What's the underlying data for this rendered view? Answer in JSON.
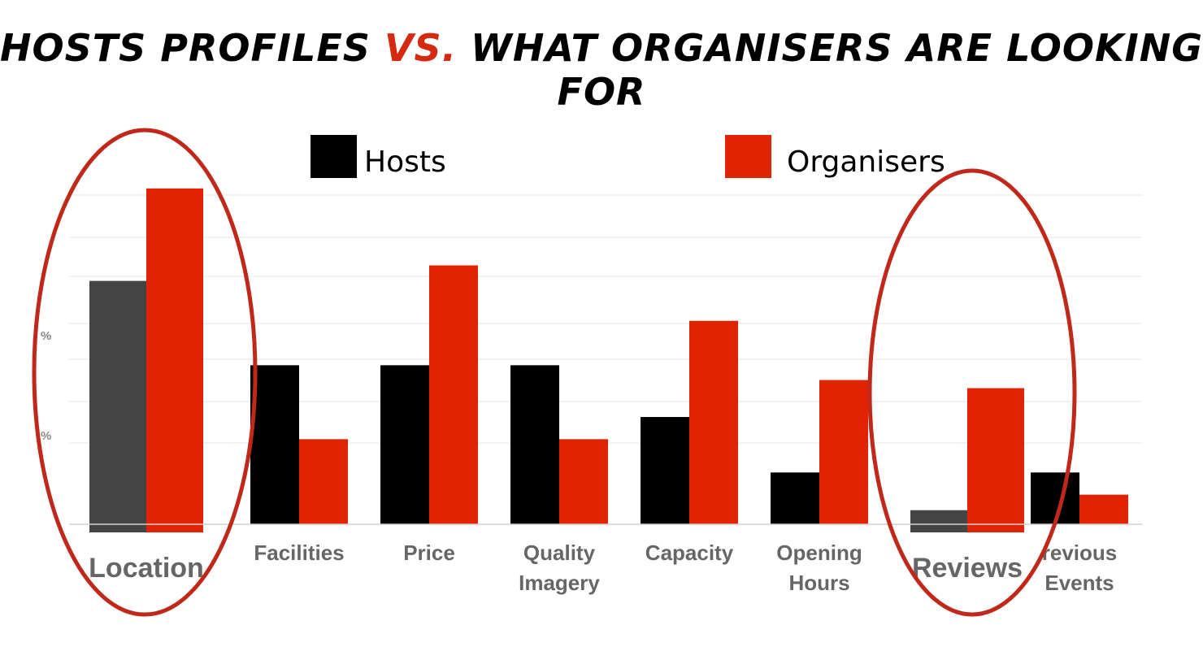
{
  "title": {
    "part1": "HOSTS PROFILES ",
    "accent": "VS.",
    "part2": " WHAT ORGANISERS ARE LOOKING FOR"
  },
  "colors": {
    "hosts": "#000000",
    "hosts_highlight": "#444444",
    "organisers": "#e02300",
    "circle": "#c0281a"
  },
  "chart_data": {
    "type": "bar",
    "categories": [
      "Location",
      "Facilities",
      "Price",
      "Quality Imagery",
      "Capacity",
      "Opening Hours",
      "Reviews",
      "Previous Events"
    ],
    "category_labels": [
      [
        "Location"
      ],
      [
        "Facilities"
      ],
      [
        "Price"
      ],
      [
        "Quality",
        "Imagery"
      ],
      [
        "Capacity"
      ],
      [
        "Opening",
        "Hours"
      ],
      [
        "Reviews"
      ],
      [
        "revious",
        "Events"
      ]
    ],
    "series": [
      {
        "name": "Hosts",
        "values": [
          68,
          43,
          43,
          43,
          29,
          14,
          6,
          14
        ]
      },
      {
        "name": "Organisers",
        "values": [
          93,
          23,
          70,
          23,
          55,
          39,
          39,
          8
        ]
      }
    ],
    "ylim": [
      0,
      100
    ],
    "ytick_labels": [
      "%",
      "%"
    ],
    "highlighted_categories": [
      "Location",
      "Reviews"
    ],
    "legend_position": "top",
    "grid": true
  }
}
